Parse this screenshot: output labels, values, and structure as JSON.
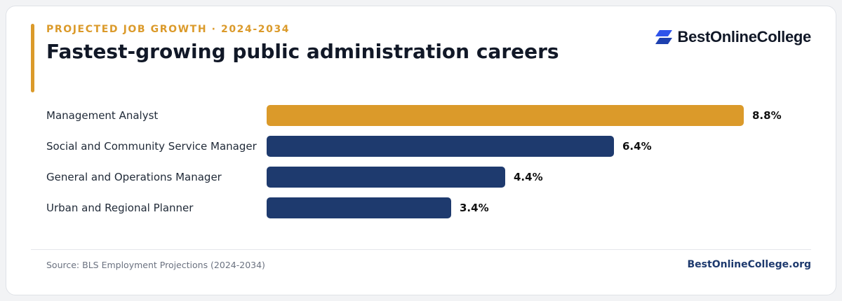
{
  "header": {
    "eyebrow": "PROJECTED JOB GROWTH · 2024-2034",
    "title": "Fastest-growing public administration careers"
  },
  "brand": {
    "logo_text": "BestOnlineCollege",
    "logo_icon": "stacked-parallelogram-logo-icon",
    "site": "BestOnlineCollege.org"
  },
  "footer": {
    "source": "Source: BLS Employment Projections (2024-2034)"
  },
  "colors": {
    "highlight": "#db9a2a",
    "primary": "#1e3a6e",
    "logo_blue": "#2f54eb"
  },
  "chart_data": {
    "type": "bar",
    "orientation": "horizontal",
    "categories": [
      "Management Analyst",
      "Social and Community Service Manager",
      "General and Operations Manager",
      "Urban and Regional Planner"
    ],
    "values": [
      8.8,
      6.4,
      4.4,
      3.4
    ],
    "value_labels": [
      "8.8%",
      "6.4%",
      "4.4%",
      "3.4%"
    ],
    "unit": "%",
    "highlight_index": 0,
    "xlim": [
      0,
      8.8
    ],
    "grid": false,
    "legend": "none"
  }
}
